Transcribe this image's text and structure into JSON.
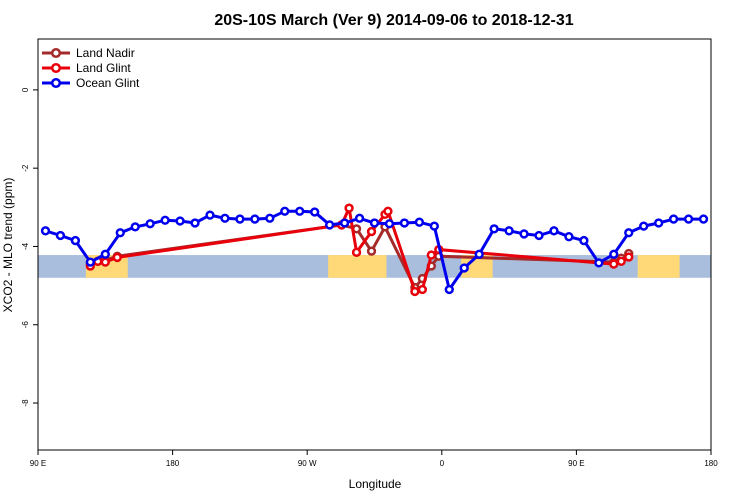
{
  "chart_data": {
    "type": "line",
    "title": "20S-10S March (Ver 9)   2014-09-06 to 2018-12-31",
    "xlabel": "Longitude",
    "ylabel": "XCO2 - MLO trend (ppm)",
    "xlim": [
      90,
      540
    ],
    "ylim": [
      -9.2,
      1.3
    ],
    "x_ticks": [
      {
        "value": 90,
        "label": "90 E"
      },
      {
        "value": 180,
        "label": "180"
      },
      {
        "value": 270,
        "label": "90 W"
      },
      {
        "value": 360,
        "label": "0"
      },
      {
        "value": 450,
        "label": "90 E"
      },
      {
        "value": 540,
        "label": "180"
      }
    ],
    "y_ticks": [
      {
        "value": 0,
        "label": "0"
      },
      {
        "value": -2,
        "label": "-2"
      },
      {
        "value": -4,
        "label": "-4"
      },
      {
        "value": -6,
        "label": "-6"
      },
      {
        "value": -8,
        "label": "-8"
      }
    ],
    "legend_position": "top-left",
    "land_band": {
      "ymin": -4.8,
      "ymax": -4.22,
      "ocean_color": "#a9bedc",
      "land_color": "#ffd877",
      "land_ranges": [
        [
          122,
          150
        ],
        [
          284,
          323
        ],
        [
          373,
          394
        ],
        [
          491,
          519
        ]
      ]
    },
    "series": [
      {
        "name": "Land Nadir",
        "color": "#a52a2a",
        "x": [
          125,
          130,
          135,
          143,
          293,
          303,
          313,
          322,
          342,
          347,
          353,
          358,
          475,
          480,
          485
        ],
        "y": [
          -4.45,
          -4.38,
          -4.35,
          -4.25,
          -3.45,
          -3.55,
          -4.12,
          -3.5,
          -5.05,
          -4.82,
          -4.5,
          -4.25,
          -4.4,
          -4.3,
          -4.18
        ]
      },
      {
        "name": "Land Glint",
        "color": "#e8000b",
        "x": [
          125,
          130,
          135,
          143,
          293,
          298,
          303,
          313,
          322,
          324,
          342,
          347,
          353,
          358,
          475,
          480,
          485
        ],
        "y": [
          -4.5,
          -4.38,
          -4.4,
          -4.28,
          -3.45,
          -3.02,
          -4.15,
          -3.62,
          -3.18,
          -3.1,
          -5.15,
          -5.1,
          -4.22,
          -4.08,
          -4.45,
          -4.38,
          -4.27
        ]
      },
      {
        "name": "Ocean Glint",
        "color": "#0000ee",
        "x": [
          95,
          105,
          115,
          125,
          135,
          145,
          155,
          165,
          175,
          185,
          195,
          205,
          215,
          225,
          235,
          245,
          255,
          265,
          275,
          285,
          295,
          305,
          315,
          325,
          335,
          345,
          355,
          365,
          375,
          385,
          395,
          405,
          415,
          425,
          435,
          445,
          455,
          465,
          475,
          485,
          495,
          505,
          515,
          525,
          535
        ],
        "y": [
          -3.6,
          -3.72,
          -3.85,
          -4.4,
          -4.2,
          -3.65,
          -3.5,
          -3.42,
          -3.33,
          -3.35,
          -3.4,
          -3.2,
          -3.28,
          -3.3,
          -3.3,
          -3.28,
          -3.1,
          -3.1,
          -3.12,
          -3.45,
          -3.4,
          -3.28,
          -3.4,
          -3.42,
          -3.4,
          -3.38,
          -3.48,
          -5.1,
          -4.55,
          -4.2,
          -3.55,
          -3.6,
          -3.68,
          -3.72,
          -3.6,
          -3.75,
          -3.85,
          -4.42,
          -4.2,
          -3.65,
          -3.48,
          -3.4,
          -3.3,
          -3.3,
          -3.3
        ]
      }
    ]
  }
}
